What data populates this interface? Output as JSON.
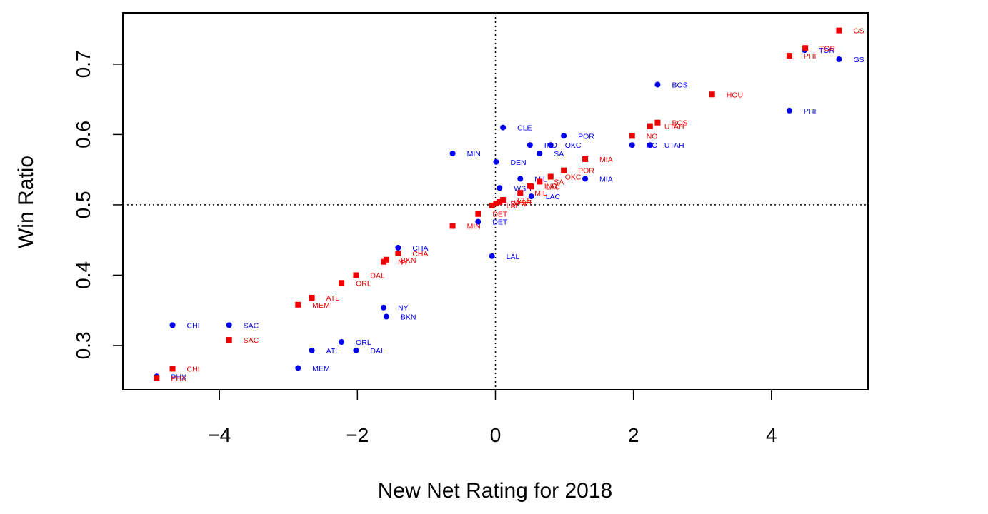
{
  "chart_data": {
    "type": "scatter",
    "xlabel": "New Net Rating for 2018",
    "ylabel": "Win Ratio",
    "xlim": [
      -5.4,
      5.4
    ],
    "ylim": [
      0.237,
      0.773
    ],
    "xticks": [
      -4,
      -2,
      0,
      2,
      4
    ],
    "xtick_labels": [
      "−4",
      "−2",
      "0",
      "2",
      "4"
    ],
    "yticks": [
      0.3,
      0.4,
      0.5,
      0.6,
      0.7
    ],
    "ytick_labels": [
      "0.3",
      "0.4",
      "0.5",
      "0.6",
      "0.7"
    ],
    "reference_lines": {
      "x": 0,
      "y": 0.5,
      "style": "dotted"
    },
    "grid": false,
    "legend": "none",
    "series": [
      {
        "color": "#0000ee",
        "marker": "circle",
        "points": [
          {
            "label": "GS",
            "x": 4.98,
            "y": 0.707
          },
          {
            "label": "TOR",
            "x": 4.48,
            "y": 0.72
          },
          {
            "label": "PHI",
            "x": 4.26,
            "y": 0.634
          },
          {
            "label": "BOS",
            "x": 2.35,
            "y": 0.671
          },
          {
            "label": "UTAH",
            "x": 2.24,
            "y": 0.585
          },
          {
            "label": "NO",
            "x": 1.98,
            "y": 0.585
          },
          {
            "label": "MIA",
            "x": 1.3,
            "y": 0.537
          },
          {
            "label": "POR",
            "x": 0.99,
            "y": 0.598
          },
          {
            "label": "OKC",
            "x": 0.8,
            "y": 0.585
          },
          {
            "label": "SA",
            "x": 0.64,
            "y": 0.573
          },
          {
            "label": "IND",
            "x": 0.5,
            "y": 0.585
          },
          {
            "label": "LAC",
            "x": 0.52,
            "y": 0.512
          },
          {
            "label": "MIL",
            "x": 0.36,
            "y": 0.537
          },
          {
            "label": "WSH",
            "x": 0.06,
            "y": 0.524
          },
          {
            "label": "CLE",
            "x": 0.11,
            "y": 0.61
          },
          {
            "label": "DEN",
            "x": 0.01,
            "y": 0.561
          },
          {
            "label": "MIN",
            "x": -0.62,
            "y": 0.573
          },
          {
            "label": "DET",
            "x": -0.25,
            "y": 0.476
          },
          {
            "label": "LAL",
            "x": -0.05,
            "y": 0.427
          },
          {
            "label": "CHA",
            "x": -1.41,
            "y": 0.439
          },
          {
            "label": "NY",
            "x": -1.62,
            "y": 0.354
          },
          {
            "label": "BKN",
            "x": -1.58,
            "y": 0.341
          },
          {
            "label": "ORL",
            "x": -2.23,
            "y": 0.305
          },
          {
            "label": "DAL",
            "x": -2.02,
            "y": 0.293
          },
          {
            "label": "ATL",
            "x": -2.66,
            "y": 0.293
          },
          {
            "label": "MEM",
            "x": -2.86,
            "y": 0.268
          },
          {
            "label": "SAC",
            "x": -3.86,
            "y": 0.329
          },
          {
            "label": "CHI",
            "x": -4.68,
            "y": 0.329
          },
          {
            "label": "PHX",
            "x": -4.91,
            "y": 0.256
          }
        ]
      },
      {
        "color": "#ee0000",
        "marker": "square",
        "points": [
          {
            "label": "GS",
            "x": 4.98,
            "y": 0.748
          },
          {
            "label": "TOR",
            "x": 4.49,
            "y": 0.723
          },
          {
            "label": "PHI",
            "x": 4.26,
            "y": 0.712
          },
          {
            "label": "HOU",
            "x": 3.14,
            "y": 0.657
          },
          {
            "label": "BOS",
            "x": 2.35,
            "y": 0.617
          },
          {
            "label": "UTAH",
            "x": 2.24,
            "y": 0.612
          },
          {
            "label": "NO",
            "x": 1.98,
            "y": 0.598
          },
          {
            "label": "MIA",
            "x": 1.3,
            "y": 0.565
          },
          {
            "label": "POR",
            "x": 0.99,
            "y": 0.549
          },
          {
            "label": "OKC",
            "x": 0.8,
            "y": 0.54
          },
          {
            "label": "SA",
            "x": 0.64,
            "y": 0.533
          },
          {
            "label": "IND",
            "x": 0.5,
            "y": 0.527
          },
          {
            "label": "LAC",
            "x": 0.52,
            "y": 0.526
          },
          {
            "label": "MIL",
            "x": 0.36,
            "y": 0.517
          },
          {
            "label": "CLE",
            "x": 0.11,
            "y": 0.507
          },
          {
            "label": "WSH",
            "x": 0.06,
            "y": 0.504
          },
          {
            "label": "DEN",
            "x": 0.01,
            "y": 0.502
          },
          {
            "label": "LAL",
            "x": -0.05,
            "y": 0.499
          },
          {
            "label": "DET",
            "x": -0.25,
            "y": 0.487
          },
          {
            "label": "MIN",
            "x": -0.62,
            "y": 0.47
          },
          {
            "label": "CHA",
            "x": -1.41,
            "y": 0.431
          },
          {
            "label": "BKN",
            "x": -1.58,
            "y": 0.422
          },
          {
            "label": "NY",
            "x": -1.62,
            "y": 0.419
          },
          {
            "label": "DAL",
            "x": -2.02,
            "y": 0.4
          },
          {
            "label": "ORL",
            "x": -2.23,
            "y": 0.389
          },
          {
            "label": "ATL",
            "x": -2.66,
            "y": 0.368
          },
          {
            "label": "MEM",
            "x": -2.86,
            "y": 0.358
          },
          {
            "label": "SAC",
            "x": -3.86,
            "y": 0.308
          },
          {
            "label": "CHI",
            "x": -4.68,
            "y": 0.267
          },
          {
            "label": "PHX",
            "x": -4.91,
            "y": 0.254
          }
        ]
      }
    ]
  }
}
